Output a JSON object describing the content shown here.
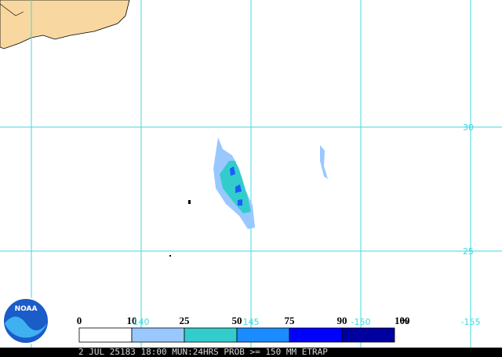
{
  "map": {
    "latitude_labels": [
      "30",
      "25"
    ],
    "longitude_labels": [
      "140",
      "145",
      "-150",
      "-155"
    ]
  },
  "legend": {
    "labels": [
      "0",
      "10",
      "25",
      "50",
      "75",
      "90",
      "100"
    ],
    "unit": "%",
    "colors": [
      "#ffffff",
      "#99c8ff",
      "#33cccc",
      "#1a8cff",
      "#0000ff",
      "#0000a0"
    ]
  },
  "footer": "2 JUL 25183 18:00 MUN:24HRS PROB >= 150 MM ETRAP",
  "logo": "NOAA"
}
